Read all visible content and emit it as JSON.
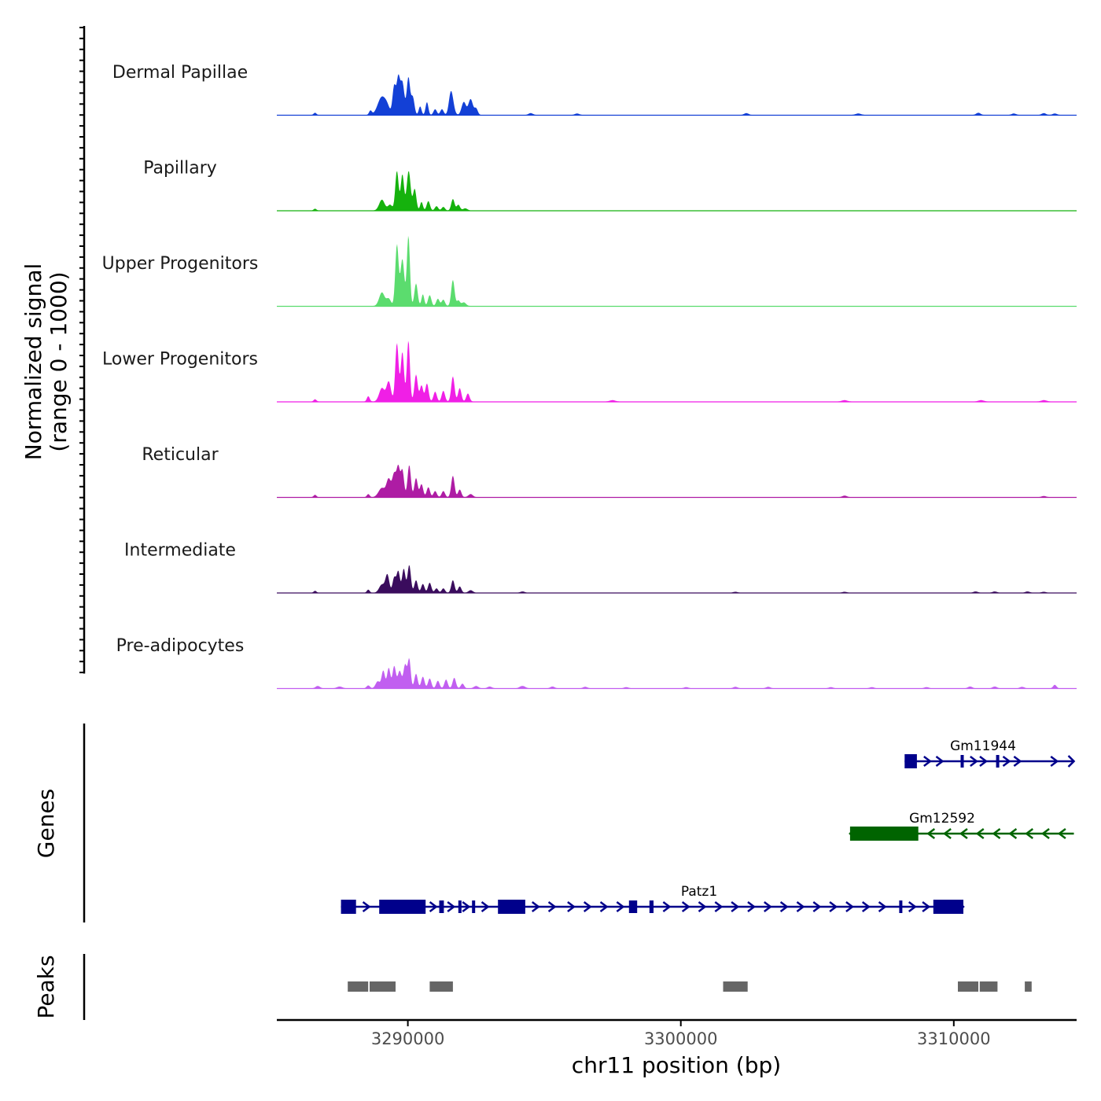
{
  "chart_data": {
    "type": "area",
    "chromosome": "chr11",
    "xlim": [
      3285200,
      3314500
    ],
    "x_ticks": [
      3290000,
      3300000,
      3310000
    ],
    "x_tick_labels": [
      "3290000",
      "3300000",
      "3310000"
    ],
    "xlabel": "chr11 position (bp)",
    "ylabel_line1": "Normalized signal",
    "ylabel_line2": "(range 0 - 1000)",
    "ylim": [
      0,
      1000
    ],
    "signal_tracks": [
      {
        "name": "Dermal Papillae",
        "color": "#1340d6",
        "scale": 0.8,
        "peaks": [
          [
            3286600,
            30,
            50
          ],
          [
            3288630,
            60,
            50
          ],
          [
            3289050,
            250,
            150
          ],
          [
            3289250,
            70,
            90
          ],
          [
            3289500,
            400,
            60
          ],
          [
            3289650,
            500,
            60
          ],
          [
            3289800,
            450,
            70
          ],
          [
            3290020,
            520,
            60
          ],
          [
            3290180,
            250,
            60
          ],
          [
            3290450,
            120,
            50
          ],
          [
            3290700,
            180,
            50
          ],
          [
            3291000,
            80,
            60
          ],
          [
            3291250,
            80,
            60
          ],
          [
            3291550,
            80,
            60
          ],
          [
            3291600,
            270,
            80
          ],
          [
            3292050,
            180,
            80
          ],
          [
            3292300,
            220,
            80
          ],
          [
            3292500,
            90,
            60
          ],
          [
            3294500,
            25,
            80
          ],
          [
            3296200,
            20,
            80
          ],
          [
            3302400,
            25,
            80
          ],
          [
            3306500,
            20,
            100
          ],
          [
            3310900,
            30,
            80
          ],
          [
            3312200,
            20,
            80
          ],
          [
            3313300,
            25,
            80
          ],
          [
            3313700,
            20,
            80
          ]
        ]
      },
      {
        "name": "Papillary",
        "color": "#15b20d",
        "scale": 0.8,
        "peaks": [
          [
            3286600,
            25,
            50
          ],
          [
            3289050,
            150,
            100
          ],
          [
            3289350,
            80,
            80
          ],
          [
            3289600,
            550,
            60
          ],
          [
            3289800,
            500,
            60
          ],
          [
            3290030,
            550,
            70
          ],
          [
            3290250,
            300,
            60
          ],
          [
            3290500,
            120,
            50
          ],
          [
            3290750,
            130,
            60
          ],
          [
            3291050,
            60,
            60
          ],
          [
            3291300,
            50,
            60
          ],
          [
            3291650,
            160,
            60
          ],
          [
            3291850,
            80,
            60
          ],
          [
            3292100,
            30,
            80
          ]
        ]
      },
      {
        "name": "Upper Progenitors",
        "color": "#5bdc6e",
        "scale": 1.0,
        "peaks": [
          [
            3289050,
            150,
            100
          ],
          [
            3289300,
            80,
            80
          ],
          [
            3289600,
            680,
            60
          ],
          [
            3289800,
            520,
            70
          ],
          [
            3290020,
            780,
            55
          ],
          [
            3290300,
            250,
            60
          ],
          [
            3290550,
            130,
            50
          ],
          [
            3290800,
            120,
            60
          ],
          [
            3291100,
            80,
            60
          ],
          [
            3291300,
            70,
            60
          ],
          [
            3291650,
            290,
            60
          ],
          [
            3291850,
            60,
            60
          ],
          [
            3292050,
            40,
            80
          ]
        ]
      },
      {
        "name": "Lower Progenitors",
        "color": "#f01fe6",
        "scale": 1.0,
        "peaks": [
          [
            3286600,
            25,
            50
          ],
          [
            3288550,
            60,
            50
          ],
          [
            3289050,
            150,
            100
          ],
          [
            3289300,
            220,
            80
          ],
          [
            3289600,
            650,
            60
          ],
          [
            3289800,
            550,
            60
          ],
          [
            3290020,
            680,
            55
          ],
          [
            3290300,
            300,
            60
          ],
          [
            3290500,
            180,
            60
          ],
          [
            3290700,
            200,
            60
          ],
          [
            3291000,
            110,
            60
          ],
          [
            3291300,
            120,
            60
          ],
          [
            3291650,
            280,
            60
          ],
          [
            3291900,
            150,
            60
          ],
          [
            3292200,
            90,
            60
          ],
          [
            3297500,
            15,
            100
          ],
          [
            3306000,
            15,
            100
          ],
          [
            3311000,
            15,
            100
          ],
          [
            3313300,
            15,
            100
          ]
        ]
      },
      {
        "name": "Reticular",
        "color": "#ae1ca4",
        "scale": 0.85,
        "peaks": [
          [
            3286600,
            30,
            50
          ],
          [
            3288550,
            40,
            50
          ],
          [
            3289050,
            120,
            120
          ],
          [
            3289300,
            230,
            80
          ],
          [
            3289500,
            300,
            70
          ],
          [
            3289650,
            380,
            60
          ],
          [
            3289800,
            350,
            60
          ],
          [
            3290050,
            420,
            60
          ],
          [
            3290300,
            250,
            60
          ],
          [
            3290500,
            170,
            60
          ],
          [
            3290750,
            130,
            60
          ],
          [
            3291000,
            80,
            60
          ],
          [
            3291300,
            80,
            60
          ],
          [
            3291650,
            280,
            60
          ],
          [
            3291900,
            100,
            60
          ],
          [
            3292300,
            40,
            80
          ],
          [
            3306000,
            20,
            80
          ],
          [
            3313300,
            15,
            80
          ]
        ]
      },
      {
        "name": "Intermediate",
        "color": "#3a0c5d",
        "scale": 0.7,
        "peaks": [
          [
            3286600,
            30,
            50
          ],
          [
            3288550,
            50,
            50
          ],
          [
            3289050,
            130,
            100
          ],
          [
            3289250,
            280,
            70
          ],
          [
            3289500,
            240,
            60
          ],
          [
            3289650,
            340,
            60
          ],
          [
            3289850,
            380,
            60
          ],
          [
            3290050,
            440,
            60
          ],
          [
            3290300,
            200,
            60
          ],
          [
            3290550,
            140,
            60
          ],
          [
            3290800,
            160,
            60
          ],
          [
            3291050,
            70,
            60
          ],
          [
            3291300,
            70,
            60
          ],
          [
            3291650,
            200,
            60
          ],
          [
            3291900,
            100,
            60
          ],
          [
            3292300,
            40,
            80
          ],
          [
            3294200,
            20,
            80
          ],
          [
            3302000,
            15,
            80
          ],
          [
            3306000,
            15,
            80
          ],
          [
            3310800,
            20,
            80
          ],
          [
            3311500,
            20,
            80
          ],
          [
            3312700,
            20,
            80
          ],
          [
            3313300,
            15,
            80
          ]
        ]
      },
      {
        "name": "Pre-adipocytes",
        "color": "#c15ef0",
        "scale": 0.65,
        "peaks": [
          [
            3286700,
            40,
            80
          ],
          [
            3287500,
            30,
            100
          ],
          [
            3288550,
            50,
            60
          ],
          [
            3288900,
            120,
            80
          ],
          [
            3289100,
            300,
            60
          ],
          [
            3289300,
            350,
            60
          ],
          [
            3289500,
            380,
            60
          ],
          [
            3289700,
            300,
            70
          ],
          [
            3289900,
            400,
            60
          ],
          [
            3290050,
            500,
            55
          ],
          [
            3290300,
            250,
            60
          ],
          [
            3290550,
            200,
            60
          ],
          [
            3290800,
            170,
            60
          ],
          [
            3291100,
            130,
            60
          ],
          [
            3291400,
            150,
            60
          ],
          [
            3291700,
            180,
            60
          ],
          [
            3292000,
            80,
            60
          ],
          [
            3292500,
            40,
            80
          ],
          [
            3293000,
            30,
            80
          ],
          [
            3294200,
            40,
            100
          ],
          [
            3295300,
            30,
            80
          ],
          [
            3296500,
            25,
            80
          ],
          [
            3298000,
            20,
            80
          ],
          [
            3300200,
            20,
            80
          ],
          [
            3302000,
            25,
            80
          ],
          [
            3303200,
            25,
            80
          ],
          [
            3305500,
            20,
            80
          ],
          [
            3307000,
            20,
            80
          ],
          [
            3309000,
            20,
            80
          ],
          [
            3310600,
            30,
            80
          ],
          [
            3311500,
            30,
            80
          ],
          [
            3312500,
            25,
            80
          ],
          [
            3313700,
            60,
            60
          ]
        ]
      }
    ],
    "genes": [
      {
        "name": "Gm11944",
        "strand": "+",
        "color": "#00008b",
        "start": 3308200,
        "end": 3314400,
        "blocks": [
          [
            3308200,
            3308650,
            "thick"
          ],
          [
            3310250,
            3310330,
            "thin"
          ],
          [
            3311550,
            3311600,
            "thin"
          ]
        ],
        "arrows": [
          3309050,
          3309500,
          3310750,
          3311100,
          3311950,
          3312350,
          3313700
        ]
      },
      {
        "name": "Gm12592",
        "strand": "-",
        "color": "#006400",
        "start": 3306200,
        "end": 3314400,
        "blocks": [
          [
            3306200,
            3308700,
            "thick"
          ]
        ],
        "arrows": [
          3309150,
          3309750,
          3310350,
          3310950,
          3311550,
          3312150,
          3312750,
          3313350,
          3313950
        ]
      },
      {
        "name": "Patz1",
        "strand": "+",
        "color": "#00008b",
        "start": 3287550,
        "end": 3310350,
        "blocks": [
          [
            3287550,
            3288100,
            "thick"
          ],
          [
            3288950,
            3290650,
            "thick"
          ],
          [
            3291150,
            3291320,
            "thin"
          ],
          [
            3291850,
            3291940,
            "thin"
          ],
          [
            3292350,
            3292420,
            "thin"
          ],
          [
            3293300,
            3294300,
            "thick"
          ],
          [
            3298100,
            3298400,
            "thin"
          ],
          [
            3298850,
            3299000,
            "thin"
          ],
          [
            3308000,
            3308100,
            "thin"
          ],
          [
            3309250,
            3310350,
            "thick"
          ]
        ],
        "arrows": [
          3288500,
          3290950,
          3291600,
          3292150,
          3292850,
          3294700,
          3295300,
          3296000,
          3296600,
          3297200,
          3297800,
          3299500,
          3300200,
          3300800,
          3301400,
          3302000,
          3302600,
          3303200,
          3303800,
          3304400,
          3305000,
          3305600,
          3306200,
          3306800,
          3307400,
          3308500,
          3309000
        ]
      }
    ],
    "peaks_track": [
      [
        3287800,
        3288550
      ],
      [
        3288600,
        3289550
      ],
      [
        3290800,
        3291650
      ],
      [
        3301550,
        3302450
      ],
      [
        3310150,
        3310900
      ],
      [
        3310950,
        3311600
      ],
      [
        3312600,
        3312850
      ]
    ],
    "track_titles": {
      "genes": "Genes",
      "peaks": "Peaks"
    }
  }
}
